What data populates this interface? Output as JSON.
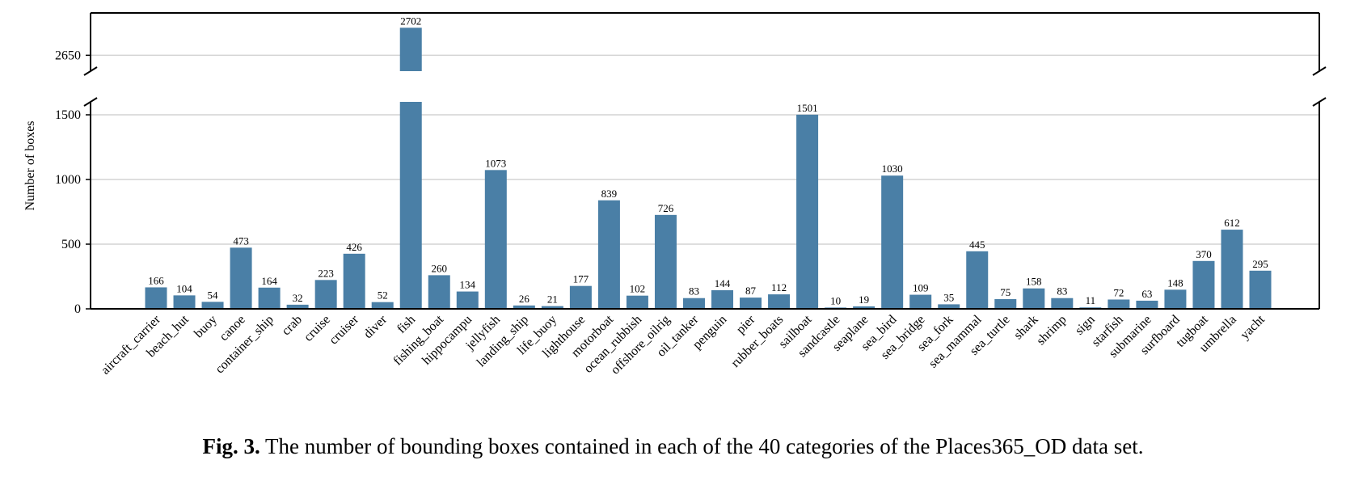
{
  "chart_data": {
    "type": "bar",
    "ylabel": "Number of boxes",
    "broken_axis": true,
    "upper_segment": {
      "ylim": [
        2620,
        2730
      ],
      "yticks": [
        2650
      ]
    },
    "lower_segment": {
      "ylim": [
        0,
        1600
      ],
      "yticks": [
        0,
        500,
        1000,
        1500
      ]
    },
    "grid": "horizontal",
    "bar_color": "#4a7fa6",
    "categories": [
      "aircraft_carrier",
      "beach_hut",
      "buoy",
      "canoe",
      "container_ship",
      "crab",
      "cruise",
      "cruiser",
      "diver",
      "fish",
      "fishing_boat",
      "hippocampu",
      "jellyfish",
      "landing_ship",
      "life_buoy",
      "lighthouse",
      "motorboat",
      "ocean_rubbish",
      "offshore_oilrig",
      "oil_tanker",
      "penguin",
      "pier",
      "rubber_boats",
      "sailboat",
      "sandcastle",
      "seaplane",
      "sea_bird",
      "sea_bridge",
      "sea_fork",
      "sea_mammal",
      "sea_turtle",
      "shark",
      "shrimp",
      "sign",
      "starfish",
      "submarine",
      "surfboard",
      "tugboat",
      "umbrella",
      "yacht"
    ],
    "values": [
      166,
      104,
      54,
      473,
      164,
      32,
      223,
      426,
      52,
      2702,
      260,
      134,
      1073,
      26,
      21,
      177,
      839,
      102,
      726,
      83,
      144,
      87,
      112,
      1501,
      10,
      19,
      1030,
      109,
      35,
      445,
      75,
      158,
      83,
      11,
      72,
      63,
      148,
      370,
      612,
      295
    ]
  },
  "caption": {
    "label": "Fig. 3.",
    "text": " The number of bounding boxes contained in each of the 40 categories of the Places365_OD data set."
  }
}
